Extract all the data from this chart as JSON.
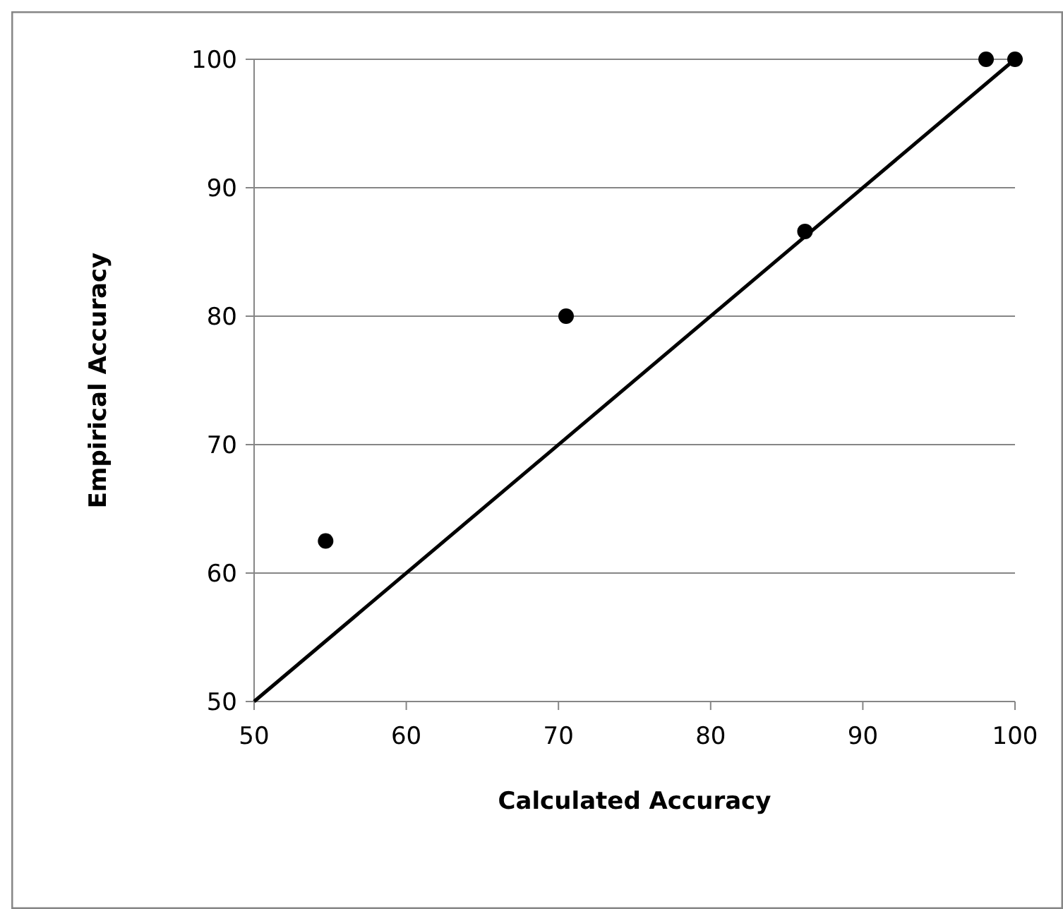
{
  "chart_data": {
    "type": "scatter",
    "xlabel": "Calculated Accuracy",
    "ylabel": "Empirical Accuracy",
    "x": [
      54.7,
      70.5,
      86.2,
      98.1,
      100
    ],
    "series": [
      {
        "color": "#000000",
        "marker": "circle",
        "values": [
          62.5,
          80,
          86.6,
          100,
          100
        ]
      },
      {
        "type": "line",
        "color": "#000000",
        "marker": "none",
        "x": [
          50,
          100
        ],
        "values": [
          50,
          100
        ]
      }
    ],
    "xlim": [
      50,
      100
    ],
    "ylim": [
      50,
      100
    ],
    "xticks": [
      50,
      60,
      70,
      80,
      90,
      100
    ],
    "yticks": [
      50,
      60,
      70,
      80,
      90,
      100
    ],
    "grid": "y"
  }
}
